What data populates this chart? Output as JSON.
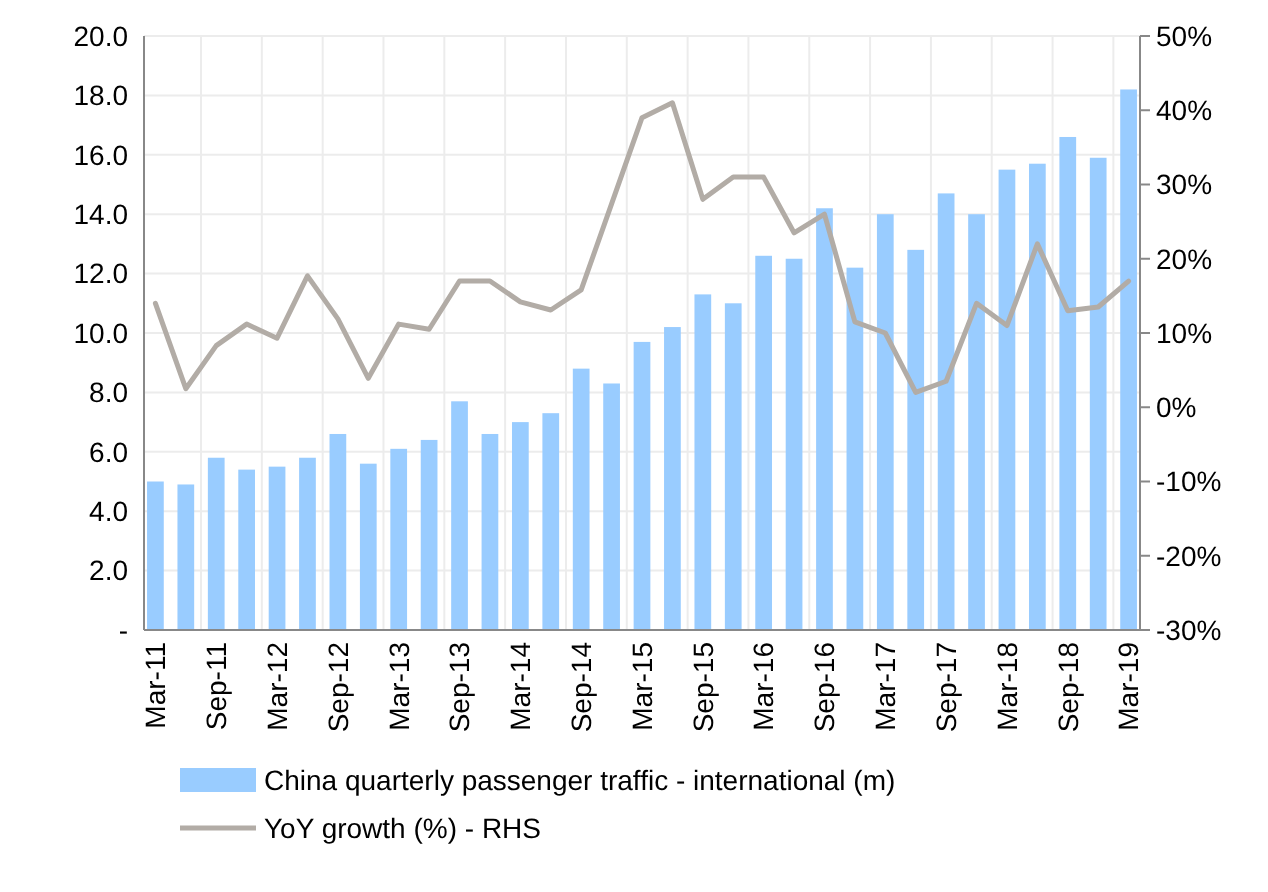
{
  "chart_data": {
    "type": "bar",
    "categories": [
      "Mar-11",
      null,
      "Sep-11",
      null,
      "Mar-12",
      null,
      "Sep-12",
      null,
      "Mar-13",
      null,
      "Sep-13",
      null,
      "Mar-14",
      null,
      "Sep-14",
      null,
      "Mar-15",
      null,
      "Sep-15",
      null,
      "Mar-16",
      null,
      "Sep-16",
      null,
      "Mar-17",
      null,
      "Sep-17",
      null,
      "Mar-18",
      null,
      "Sep-18",
      null,
      "Mar-19"
    ],
    "series": [
      {
        "name": "China quarterly passenger traffic - international (m)",
        "color": "#99ccff",
        "values": [
          5.0,
          4.9,
          5.8,
          5.4,
          5.5,
          5.8,
          6.6,
          5.6,
          6.1,
          6.4,
          7.7,
          6.6,
          7.0,
          7.3,
          8.8,
          8.3,
          9.7,
          10.2,
          11.3,
          11.0,
          12.6,
          12.5,
          14.2,
          12.2,
          14.0,
          12.8,
          14.7,
          14.0,
          15.5,
          15.7,
          16.6,
          15.9,
          18.2
        ]
      },
      {
        "name": "YoY growth (%) - RHS",
        "type": "line",
        "axis": "y2",
        "color": "#b2aca6",
        "values": [
          14,
          2.5,
          8.3,
          11.2,
          9.3,
          17.7,
          11.9,
          3.9,
          11.2,
          10.5,
          17,
          17,
          14.2,
          13.1,
          15.8,
          27.4,
          39,
          41,
          28,
          31,
          31,
          23.5,
          26,
          11.5,
          10,
          2,
          3.5,
          14,
          11,
          22,
          13,
          13.5,
          17
        ]
      }
    ],
    "ylim": [
      0,
      20
    ],
    "yticks": [
      {
        "value": 0,
        "label": "-"
      },
      {
        "value": 2,
        "label": "2.0"
      },
      {
        "value": 4,
        "label": "4.0"
      },
      {
        "value": 6,
        "label": "6.0"
      },
      {
        "value": 8,
        "label": "8.0"
      },
      {
        "value": 10,
        "label": "10.0"
      },
      {
        "value": 12,
        "label": "12.0"
      },
      {
        "value": 14,
        "label": "14.0"
      },
      {
        "value": 16,
        "label": "16.0"
      },
      {
        "value": 18,
        "label": "18.0"
      },
      {
        "value": 20,
        "label": "20.0"
      }
    ],
    "y2lim": [
      -30,
      50
    ],
    "y2ticks": [
      {
        "value": -30,
        "label": "-30%"
      },
      {
        "value": -20,
        "label": "-20%"
      },
      {
        "value": -10,
        "label": "-10%"
      },
      {
        "value": 0,
        "label": "0%"
      },
      {
        "value": 10,
        "label": "10%"
      },
      {
        "value": 20,
        "label": "20%"
      },
      {
        "value": 30,
        "label": "30%"
      },
      {
        "value": 40,
        "label": "40%"
      },
      {
        "value": 50,
        "label": "50%"
      }
    ],
    "grid": true,
    "legend": "bottom"
  }
}
